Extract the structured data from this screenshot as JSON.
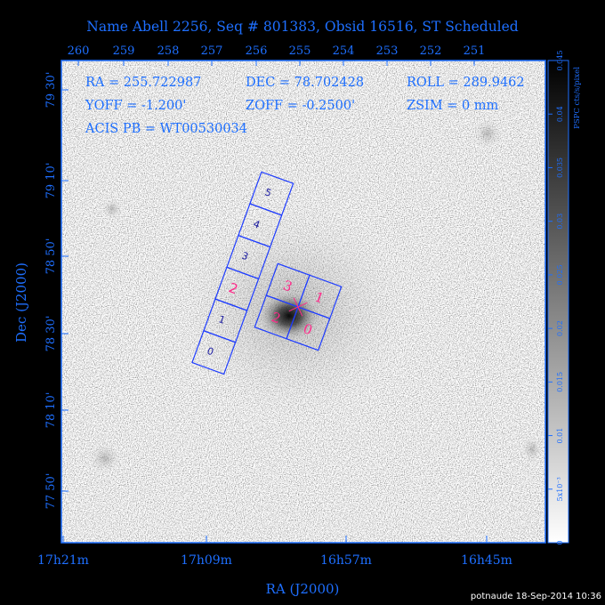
{
  "title": "Name Abell 2256, Seq # 801383, Obsid 16516, ST Scheduled",
  "footer": "potnaude 18-Sep-2014 10:36",
  "info": {
    "line1": [
      "RA = 255.722987",
      "DEC = 78.702428",
      "ROLL = 289.9462"
    ],
    "line2": [
      "YOFF = -1.200'",
      "ZOFF = -0.2500'",
      "ZSIM = 0 mm"
    ],
    "line3": "ACIS PB = WT00530034"
  },
  "colors": {
    "axis": "#1e6fff",
    "chip_outline": "#1e3cff",
    "chip_label_magenta": "#ff2a8a",
    "background": "#000000",
    "image": "#ffffff"
  },
  "chart_data": {
    "type": "heatmap",
    "title": "Name Abell 2256, Seq # 801383, Obsid 16516, ST Scheduled",
    "xlabel": "RA (J2000)",
    "ylabel": "Dec (J2000)",
    "x_bottom_ticks": [
      "17h21m",
      "17h09m",
      "16h57m",
      "16h45m"
    ],
    "x_top_ticks": [
      "260",
      "259",
      "258",
      "257",
      "256",
      "255",
      "254",
      "253",
      "252",
      "251"
    ],
    "y_ticks": [
      "79 30'",
      "79 10'",
      "78 50'",
      "78 30'",
      "78 10'",
      "77 50'"
    ],
    "colorbar": {
      "label": "PSPC cts/s/pixel",
      "ticks": [
        "0",
        "5x10⁻³",
        "0.01",
        "0.015",
        "0.02",
        "0.025",
        "0.03",
        "0.035",
        "0.04",
        "0.045"
      ],
      "range": [
        0,
        0.045
      ]
    },
    "chips": {
      "s_array": [
        "0",
        "1",
        "2",
        "3",
        "4",
        "5"
      ],
      "i_array": [
        "0",
        "1",
        "2",
        "3"
      ]
    }
  }
}
